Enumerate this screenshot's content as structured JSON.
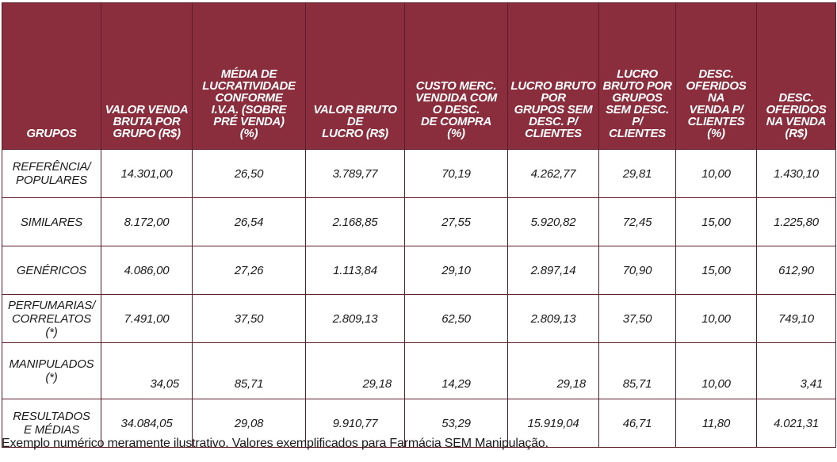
{
  "table": {
    "headers": [
      "GRUPOS",
      "VALOR VENDA BRUTA POR GRUPO (R$)",
      "MÉDIA DE LUCRATIVIDADE CONFORME I.V.A. (SOBRE PRÉ VENDA) (%)",
      "VALOR BRUTO DE LUCRO (R$)",
      "CUSTO MERC. VENDIDA COM O DESC. DE COMPRA (%)",
      "LUCRO BRUTO POR GRUPOS SEM DESC. P/ CLIENTES (R$)",
      "LUCRO BRUTO POR GRUPOS SEM DESC. P/ CLIENTES (%)",
      "DESC. OFERIDOS NA VENDA P/ CLIENTES (%)",
      "DESC. OFERIDOS NA VENDA (R$)"
    ],
    "rows": [
      {
        "group": "REFERÊNCIA/ POPULARES",
        "values": [
          "14.301,00",
          "26,50",
          "3.789,77",
          "70,19",
          "4.262,77",
          "29,81",
          "10,00",
          "1.430,10"
        ]
      },
      {
        "group": "SIMILARES",
        "values": [
          "8.172,00",
          "26,54",
          "2.168,85",
          "27,55",
          "5.920,82",
          "72,45",
          "15,00",
          "1.225,80"
        ]
      },
      {
        "group": "GENÉRICOS",
        "values": [
          "4.086,00",
          "27,26",
          "1.113,84",
          "29,10",
          "2.897,14",
          "70,90",
          "15,00",
          "612,90"
        ]
      },
      {
        "group": "PERFUMARIAS/ CORRELATOS (*)",
        "values": [
          "7.491,00",
          "37,50",
          "2.809,13",
          "62,50",
          "2.809,13",
          "37,50",
          "10,00",
          "749,10"
        ]
      },
      {
        "group": "MANIPULADOS (*)",
        "values": [
          "34,05",
          "85,71",
          "29,18",
          "14,29",
          "29,18",
          "85,71",
          "10,00",
          "3,41"
        ]
      },
      {
        "group": "RESULTADOS E MÉDIAS",
        "values": [
          "34.084,05",
          "29,08",
          "9.910,77",
          "53,29",
          "15.919,04",
          "46,71",
          "11,80",
          "4.021,31"
        ]
      }
    ]
  },
  "footnote": "Exemplo numérico meramente ilustrativo. Valores exemplificados para Farmácia SEM Manipulação.",
  "colors": {
    "header_bg": "#8a2e3d",
    "header_text": "#ffffff",
    "border": "#5a1d29"
  }
}
